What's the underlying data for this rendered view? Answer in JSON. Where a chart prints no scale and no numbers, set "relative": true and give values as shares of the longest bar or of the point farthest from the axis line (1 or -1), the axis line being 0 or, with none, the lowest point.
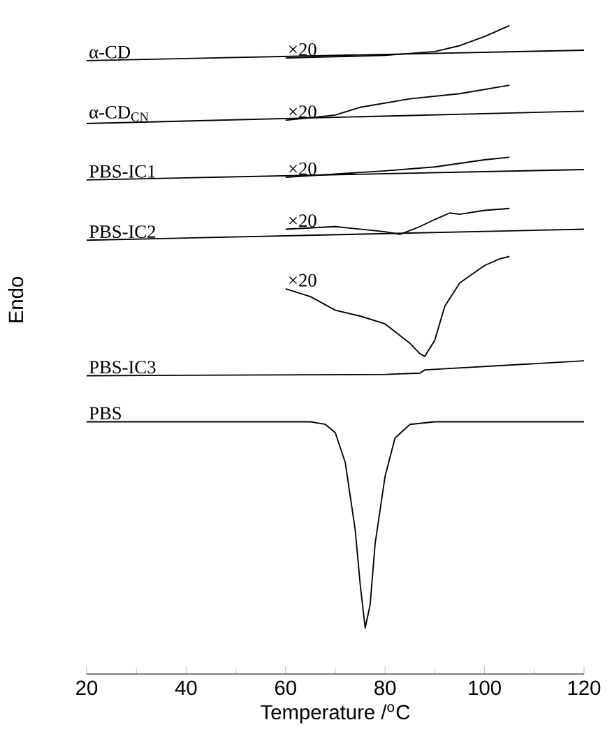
{
  "chart_data": {
    "type": "line",
    "relative": true,
    "xlabel": "Temperature /$^{o}$C",
    "ylabel": "Endo",
    "xlim": [
      20,
      120
    ],
    "xticks": [
      20,
      40,
      60,
      80,
      100,
      120
    ],
    "grid": false,
    "marker": "none",
    "line_style": "solid",
    "series": [
      {
        "name": "α-CD",
        "color": "#000000",
        "x": [
          20,
          70,
          120
        ],
        "values": [
          0.946,
          0.954,
          0.962
        ]
      },
      {
        "name": "×20",
        "color": "#000000",
        "x": [
          60,
          80,
          90,
          95,
          100,
          105
        ],
        "values": [
          0.95,
          0.954,
          0.96,
          0.969,
          0.983,
          1.0
        ]
      },
      {
        "name": "α-CD$_{CN}$",
        "color": "#000000",
        "x": [
          20,
          120
        ],
        "values": [
          0.849,
          0.868
        ]
      },
      {
        "name": "×20",
        "color": "#000000",
        "x": [
          60,
          70,
          75,
          85,
          95,
          105
        ],
        "values": [
          0.854,
          0.862,
          0.874,
          0.887,
          0.895,
          0.908
        ]
      },
      {
        "name": "PBS-IC1",
        "color": "#000000",
        "x": [
          20,
          120
        ],
        "values": [
          0.762,
          0.778
        ]
      },
      {
        "name": "×20",
        "color": "#000000",
        "x": [
          60,
          80,
          90,
          100,
          105
        ],
        "values": [
          0.766,
          0.776,
          0.782,
          0.793,
          0.797
        ]
      },
      {
        "name": "PBS-IC2",
        "color": "#000000",
        "x": [
          20,
          120
        ],
        "values": [
          0.669,
          0.686
        ]
      },
      {
        "name": "×20",
        "color": "#000000",
        "x": [
          60,
          70,
          80,
          83,
          87,
          90,
          93,
          95,
          100,
          105
        ],
        "values": [
          0.686,
          0.69,
          0.682,
          0.678,
          0.69,
          0.701,
          0.711,
          0.709,
          0.715,
          0.718
        ]
      },
      {
        "name": "×20",
        "color": "#000000",
        "x": [
          60,
          65,
          70,
          75,
          80,
          85,
          87,
          88,
          90,
          92,
          95,
          100,
          103,
          105
        ],
        "values": [
          0.594,
          0.582,
          0.561,
          0.552,
          0.54,
          0.51,
          0.494,
          0.49,
          0.515,
          0.567,
          0.603,
          0.63,
          0.64,
          0.644
        ]
      },
      {
        "name": "PBS-IC3",
        "color": "#000000",
        "x": [
          20,
          80,
          87,
          88,
          120
        ],
        "values": [
          0.46,
          0.462,
          0.464,
          0.469,
          0.483
        ]
      },
      {
        "name": "PBS",
        "color": "#000000",
        "x": [
          20,
          65,
          68,
          70,
          72,
          74,
          75,
          76,
          77,
          78,
          80,
          82,
          85,
          90,
          120
        ],
        "values": [
          0.389,
          0.389,
          0.385,
          0.372,
          0.326,
          0.222,
          0.138,
          0.071,
          0.107,
          0.201,
          0.305,
          0.364,
          0.385,
          0.389,
          0.389
        ]
      }
    ]
  }
}
